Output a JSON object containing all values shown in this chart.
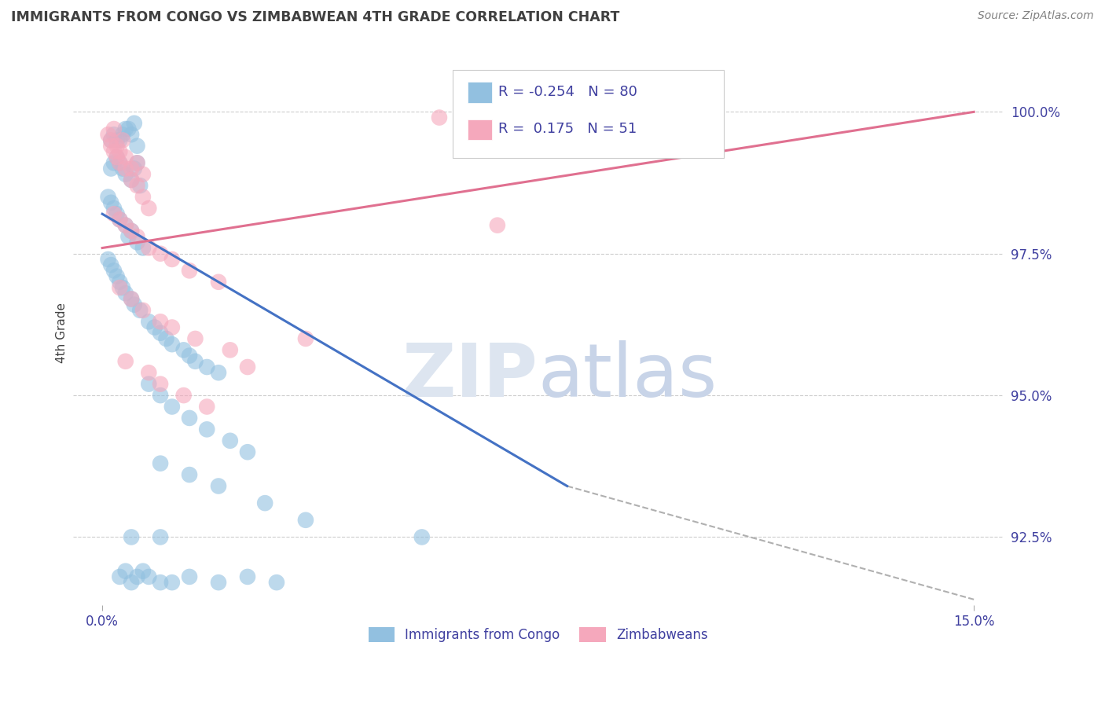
{
  "title": "IMMIGRANTS FROM CONGO VS ZIMBABWEAN 4TH GRADE CORRELATION CHART",
  "source": "Source: ZipAtlas.com",
  "ylabel": "4th Grade",
  "ymin": 91.3,
  "ymax": 100.9,
  "xmin": -0.5,
  "xmax": 15.5,
  "legend_blue_r": "-0.254",
  "legend_blue_n": "80",
  "legend_pink_r": "0.175",
  "legend_pink_n": "51",
  "legend_label_blue": "Immigrants from Congo",
  "legend_label_pink": "Zimbabweans",
  "blue_color": "#92c0e0",
  "pink_color": "#f5a8bc",
  "blue_line_color": "#4472c4",
  "pink_line_color": "#e07090",
  "title_color": "#404040",
  "source_color": "#808080",
  "axis_label_color": "#4040a0",
  "watermark_color": "#dde5f0",
  "blue_scatter_x": [
    0.15,
    0.2,
    0.25,
    0.3,
    0.35,
    0.4,
    0.45,
    0.5,
    0.55,
    0.6,
    0.15,
    0.2,
    0.25,
    0.3,
    0.35,
    0.4,
    0.5,
    0.55,
    0.6,
    0.65,
    0.1,
    0.15,
    0.2,
    0.25,
    0.3,
    0.4,
    0.45,
    0.5,
    0.6,
    0.7,
    0.1,
    0.15,
    0.2,
    0.25,
    0.3,
    0.35,
    0.4,
    0.5,
    0.55,
    0.65,
    0.8,
    0.9,
    1.0,
    1.1,
    1.2,
    1.4,
    1.5,
    1.6,
    1.8,
    2.0,
    0.8,
    1.0,
    1.2,
    1.5,
    1.8,
    2.2,
    2.5,
    1.0,
    1.5,
    2.0,
    2.8,
    3.5,
    0.5,
    1.0,
    5.5,
    0.3,
    0.4,
    0.5,
    0.6,
    0.7,
    0.8,
    1.0,
    1.2,
    1.5,
    2.0,
    2.5,
    3.0
  ],
  "blue_scatter_y": [
    99.5,
    99.6,
    99.5,
    99.5,
    99.6,
    99.7,
    99.7,
    99.6,
    99.8,
    99.4,
    99.0,
    99.1,
    99.2,
    99.1,
    99.0,
    98.9,
    98.8,
    99.0,
    99.1,
    98.7,
    98.5,
    98.4,
    98.3,
    98.2,
    98.1,
    98.0,
    97.8,
    97.9,
    97.7,
    97.6,
    97.4,
    97.3,
    97.2,
    97.1,
    97.0,
    96.9,
    96.8,
    96.7,
    96.6,
    96.5,
    96.3,
    96.2,
    96.1,
    96.0,
    95.9,
    95.8,
    95.7,
    95.6,
    95.5,
    95.4,
    95.2,
    95.0,
    94.8,
    94.6,
    94.4,
    94.2,
    94.0,
    93.8,
    93.6,
    93.4,
    93.1,
    92.8,
    92.5,
    92.5,
    92.5,
    91.8,
    91.9,
    91.7,
    91.8,
    91.9,
    91.8,
    91.7,
    91.7,
    91.8,
    91.7,
    91.8,
    91.7
  ],
  "pink_scatter_x": [
    0.1,
    0.15,
    0.2,
    0.25,
    0.3,
    0.35,
    0.4,
    0.5,
    0.6,
    0.7,
    0.15,
    0.2,
    0.25,
    0.3,
    0.4,
    0.5,
    0.6,
    0.7,
    0.8,
    0.2,
    0.3,
    0.4,
    0.5,
    0.6,
    0.8,
    1.0,
    1.2,
    1.5,
    2.0,
    0.3,
    0.5,
    0.7,
    1.0,
    1.2,
    1.6,
    2.2,
    0.4,
    0.8,
    1.0,
    1.4,
    1.8,
    2.5,
    3.5,
    5.8,
    6.8
  ],
  "pink_scatter_y": [
    99.6,
    99.5,
    99.7,
    99.4,
    99.3,
    99.5,
    99.2,
    99.0,
    99.1,
    98.9,
    99.4,
    99.3,
    99.2,
    99.1,
    99.0,
    98.8,
    98.7,
    98.5,
    98.3,
    98.2,
    98.1,
    98.0,
    97.9,
    97.8,
    97.6,
    97.5,
    97.4,
    97.2,
    97.0,
    96.9,
    96.7,
    96.5,
    96.3,
    96.2,
    96.0,
    95.8,
    95.6,
    95.4,
    95.2,
    95.0,
    94.8,
    95.5,
    96.0,
    99.9,
    98.0
  ],
  "blue_line_x": [
    0.0,
    8.0
  ],
  "blue_line_y": [
    98.2,
    93.4
  ],
  "pink_line_x": [
    0.0,
    15.0
  ],
  "pink_line_y": [
    97.6,
    100.0
  ],
  "blue_dash_line_x": [
    8.0,
    15.0
  ],
  "blue_dash_line_y": [
    93.4,
    91.4
  ],
  "gridline_y": [
    100.0,
    97.5,
    95.0,
    92.5
  ],
  "background_color": "#ffffff"
}
